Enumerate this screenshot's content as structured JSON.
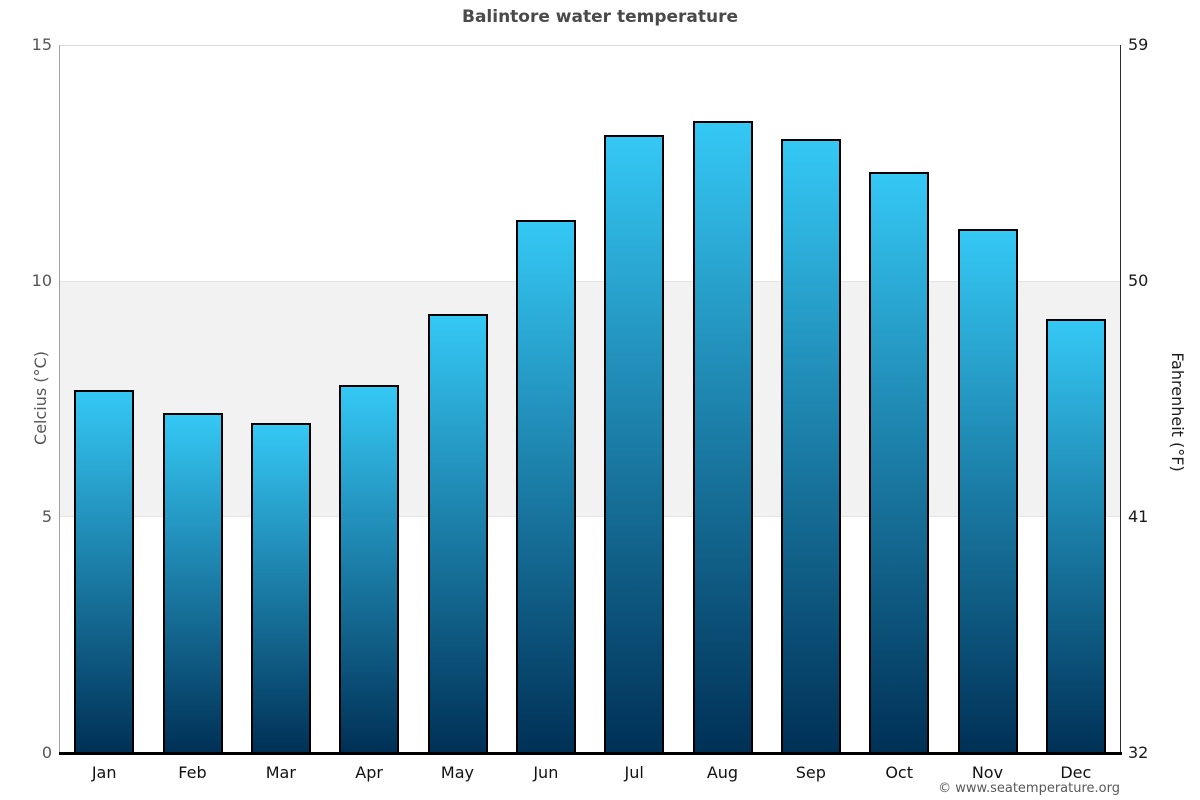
{
  "copyright": "© www.seatemperature.org",
  "chart_data": {
    "type": "bar",
    "title": "Balintore water temperature",
    "categories": [
      "Jan",
      "Feb",
      "Mar",
      "Apr",
      "May",
      "Jun",
      "Jul",
      "Aug",
      "Sep",
      "Oct",
      "Nov",
      "Dec"
    ],
    "values_c": [
      7.7,
      7.2,
      7.0,
      7.8,
      9.3,
      11.3,
      13.1,
      13.4,
      13.0,
      12.3,
      11.1,
      9.2
    ],
    "ylim_c": [
      0,
      15
    ],
    "xlabel": "",
    "left_axis": {
      "title": "Celcius (°C)",
      "ticks": [
        "15",
        "10",
        "5",
        "0"
      ]
    },
    "right_axis": {
      "title": "Fahrenheit (°F)",
      "ticks": [
        "59",
        "50",
        "41",
        "32"
      ]
    },
    "tick_positions_c": [
      15,
      10,
      5,
      0
    ],
    "shaded_band_c": [
      5,
      10
    ],
    "legend": "none",
    "grid": "light line at 15°C; shaded horizontal band between 5°C and 10°C",
    "colors": {
      "bar_top": "#35c8f5",
      "bar_bottom": "#003056",
      "bar_border": "#000000",
      "band_fill": "#f2f2f2",
      "band_edge": "#e4e4e4",
      "top_gridline": "#d9d9d9",
      "left_axis_line": "#a3a3a3",
      "right_axis_line": "#2b2b2b",
      "bottom_axis_line": "#000000",
      "title_color": "#4a4a4a",
      "left_text": "#555555",
      "right_text": "#1a1a1a",
      "month_text": "#111111",
      "copyright_color": "#595959"
    }
  }
}
